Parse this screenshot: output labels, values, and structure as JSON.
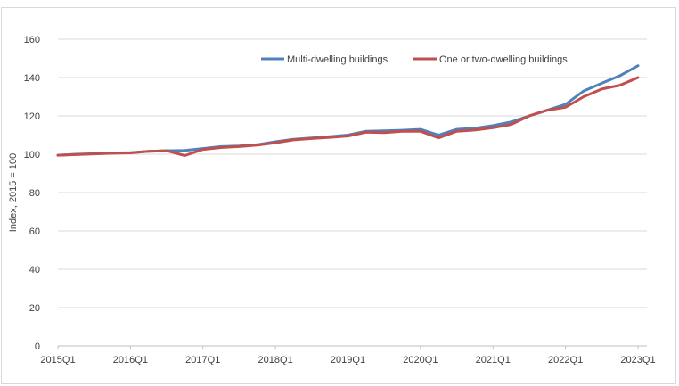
{
  "chart_data": {
    "type": "line",
    "title": "",
    "xlabel": "",
    "ylabel": "Index, 2015 = 100",
    "ylim": [
      0,
      160
    ],
    "yticks": [
      "0",
      "20",
      "40",
      "60",
      "80",
      "100",
      "120",
      "140",
      "160"
    ],
    "xtick_labels": [
      "2015Q1",
      "2016Q1",
      "2017Q1",
      "2018Q1",
      "2019Q1",
      "2020Q1",
      "2021Q1",
      "2022Q1",
      "2023Q1"
    ],
    "x": [
      "2015Q1",
      "2015Q2",
      "2015Q3",
      "2015Q4",
      "2016Q1",
      "2016Q2",
      "2016Q3",
      "2016Q4",
      "2017Q1",
      "2017Q2",
      "2017Q3",
      "2017Q4",
      "2018Q1",
      "2018Q2",
      "2018Q3",
      "2018Q4",
      "2019Q1",
      "2019Q2",
      "2019Q3",
      "2019Q4",
      "2020Q1",
      "2020Q2",
      "2020Q3",
      "2020Q4",
      "2021Q1",
      "2021Q2",
      "2021Q3",
      "2021Q4",
      "2022Q1",
      "2022Q2",
      "2022Q3",
      "2022Q4",
      "2023Q1"
    ],
    "series": [
      {
        "name": "Multi-dwelling buildings",
        "color": "#4f81bd",
        "values": [
          99.5,
          100.0,
          100.3,
          100.6,
          100.8,
          101.5,
          101.8,
          102.0,
          103.0,
          104.0,
          104.3,
          105.0,
          106.5,
          107.8,
          108.5,
          109.2,
          110.0,
          112.0,
          112.2,
          112.5,
          113.0,
          110.0,
          113.0,
          113.6,
          115.0,
          116.8,
          120.0,
          123.0,
          126.0,
          133.0,
          137.0,
          141.0,
          146.2
        ]
      },
      {
        "name": "One or two-dwelling buildings",
        "color": "#c0504d",
        "values": [
          99.5,
          99.8,
          100.2,
          100.5,
          100.7,
          101.5,
          101.8,
          99.3,
          102.5,
          103.5,
          104.0,
          104.8,
          106.0,
          107.5,
          108.2,
          108.8,
          109.5,
          111.5,
          111.3,
          112.0,
          112.0,
          108.5,
          112.0,
          112.6,
          113.8,
          115.5,
          120.0,
          123.0,
          124.5,
          130.0,
          134.0,
          136.0,
          140.0
        ]
      }
    ],
    "grid": "horizontal",
    "legend": "top-right"
  }
}
